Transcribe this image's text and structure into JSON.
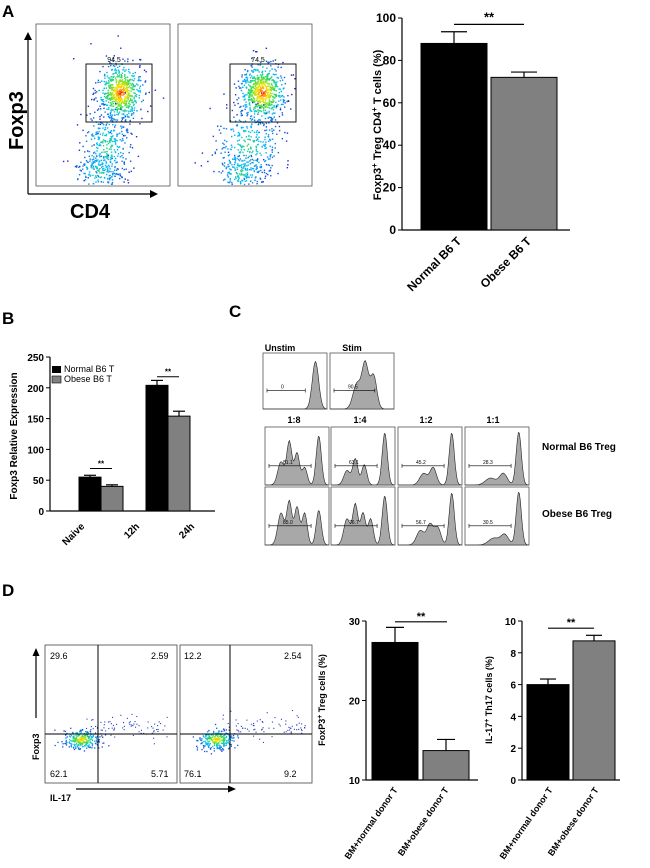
{
  "panel_labels": {
    "a": "A",
    "b": "B",
    "c": "C",
    "d": "D"
  },
  "colors": {
    "normal": "#000000",
    "obese": "#808080",
    "hist": "#a8a8a8"
  },
  "flow_a": {
    "y_axis": "Foxp3",
    "x_axis": "CD4",
    "gates": [
      "94.5",
      "74.5"
    ]
  },
  "histograms": {
    "row_labels": [
      "Normal B6 Treg",
      "Obese B6 Treg"
    ],
    "controls": [
      {
        "title": "Unstim",
        "value": "0"
      },
      {
        "title": "Stim",
        "value": "90.5"
      }
    ],
    "ratios": [
      "1:8",
      "1:4",
      "1:2",
      "1:1"
    ],
    "normal_values": [
      "81.1",
      "63.1",
      "45.2",
      "28.3"
    ],
    "obese_values": [
      "85.0",
      "76.7",
      "56.7",
      "30.5"
    ]
  },
  "flow_d": {
    "y_axis": "Foxp3",
    "x_axis": "IL-17",
    "plots": [
      {
        "ul": "29.6",
        "ur": "2.59",
        "ll": "62.1",
        "lr": "5.71"
      },
      {
        "ul": "12.2",
        "ur": "2.54",
        "ll": "76.1",
        "lr": "9.2"
      }
    ]
  },
  "chart_data": [
    {
      "id": "A-bar",
      "type": "bar",
      "categories": [
        "Normal B6 T",
        "Obese B6 T"
      ],
      "values": [
        88,
        72
      ],
      "errors": [
        5.5,
        2.5
      ],
      "ylabel_parts": [
        "Foxp3",
        "+",
        " Treg CD4",
        "+",
        " T cells (%)"
      ],
      "ylim": [
        0,
        100
      ],
      "yticks": [
        0,
        20,
        40,
        60,
        80,
        100
      ],
      "significance": "**"
    },
    {
      "id": "B-bar",
      "type": "bar",
      "categories": [
        "Naive",
        "12h",
        "24h"
      ],
      "series": [
        {
          "name": "Normal B6 T",
          "values": [
            0,
            55,
            204
          ],
          "errors": [
            0,
            3,
            8
          ]
        },
        {
          "name": "Obese B6 T",
          "values": [
            0,
            40,
            154
          ],
          "errors": [
            0,
            2.5,
            8
          ]
        }
      ],
      "ylabel": "Foxp3 Relative Expression",
      "ylim": [
        0,
        250
      ],
      "yticks": [
        0,
        50,
        100,
        150,
        200,
        250
      ],
      "significance": [
        "",
        "**",
        "**"
      ]
    },
    {
      "id": "D-treg",
      "type": "bar",
      "categories": [
        "BM+normal donor T",
        "BM+obese donor T"
      ],
      "values": [
        27.3,
        13.7
      ],
      "errors": [
        1.9,
        1.4
      ],
      "ylabel_parts": [
        "FoxP3",
        "+",
        " Treg cells (%)"
      ],
      "ylim": [
        10,
        30
      ],
      "yticks": [
        10,
        20,
        30
      ],
      "significance": "**"
    },
    {
      "id": "D-th17",
      "type": "bar",
      "categories": [
        "BM+normal donor T",
        "BM+obese donor T"
      ],
      "values": [
        6.0,
        8.75
      ],
      "errors": [
        0.35,
        0.35
      ],
      "ylabel_parts": [
        "IL-17",
        "+",
        " Th17 cells (%)"
      ],
      "ylim": [
        0,
        10
      ],
      "yticks": [
        0,
        2,
        4,
        6,
        8,
        10
      ],
      "significance": "**"
    }
  ]
}
